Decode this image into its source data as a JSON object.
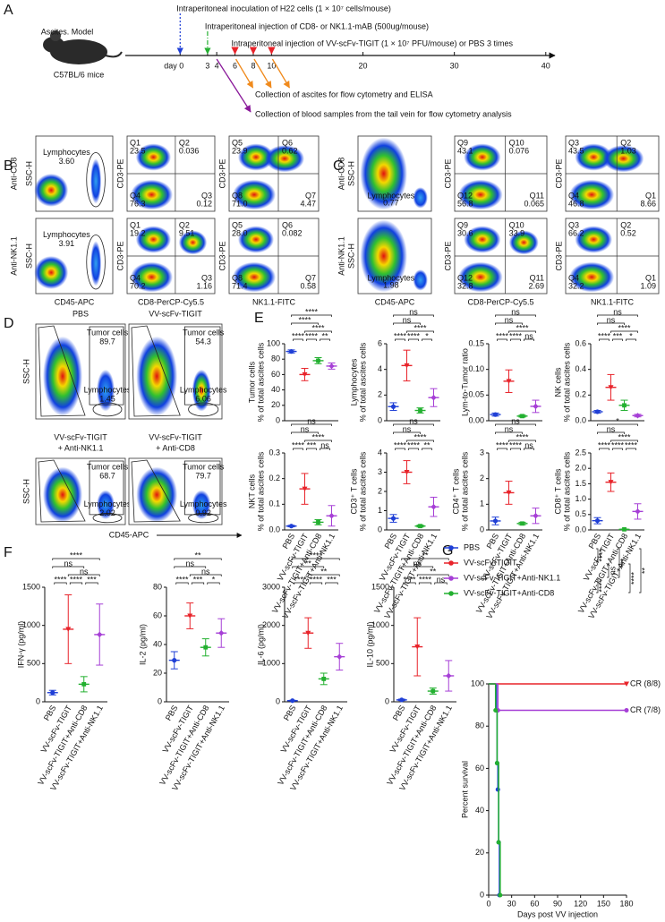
{
  "panels": [
    "A",
    "B",
    "C",
    "D",
    "E",
    "F",
    "G"
  ],
  "timeline": {
    "model": "Ascites. Model",
    "strain": "C57BL/6 mice",
    "steps": [
      "Intraperitoneal inoculation of H22 cells (1 × 10⁷ cells/mouse)",
      "Intraperitoneal injection of CD8- or NK1.1-mAB (500ug/mouse)",
      "Intraperitoneal injection of VV-scFv-TIGIT (1 × 10⁷ PFU/mouse) or PBS 3 times"
    ],
    "collections": [
      "Collection of ascites  for flow cytometry and ELISA",
      "Collection of blood samples from the tail vein for flow cytometry analysis"
    ],
    "xlim": [
      -6,
      41
    ],
    "ticks": [
      {
        "value": 0,
        "label": "day 0"
      },
      3,
      4,
      6,
      8,
      10,
      20,
      30,
      40
    ]
  },
  "flow_axes": {
    "ssc": "SSC-H",
    "cd45": "CD45-APC",
    "cd8": "CD8-PerCP-Cy5.5",
    "nk": "NK1.1-FITC",
    "cd3": "CD3-PE"
  },
  "flow_b": {
    "rows": [
      {
        "label": "Anti-CD8",
        "gate": "Lymphocytes",
        "gate_value": "3.60",
        "q2": [
          [
            "Q1",
            "23.5"
          ],
          [
            "Q2",
            "0.036"
          ],
          [
            "Q3",
            "0.12"
          ],
          [
            "Q4",
            "76.3"
          ]
        ],
        "q3": [
          [
            "Q5",
            "23.9"
          ],
          [
            "Q6",
            "0.62"
          ],
          [
            "Q7",
            "4.47"
          ],
          [
            "Q8",
            "71.0"
          ]
        ]
      },
      {
        "label": "Anti-NK1.1",
        "gate": "Lymphocytes",
        "gate_value": "3.91",
        "q2": [
          [
            "Q1",
            "19.2"
          ],
          [
            "Q2",
            "9.51"
          ],
          [
            "Q3",
            "1.16"
          ],
          [
            "Q4",
            "70.2"
          ]
        ],
        "q3": [
          [
            "Q5",
            "28.0"
          ],
          [
            "Q6",
            "0.082"
          ],
          [
            "Q7",
            "0.58"
          ],
          [
            "Q8",
            "71.4"
          ]
        ]
      }
    ]
  },
  "flow_c": {
    "rows": [
      {
        "label": "Anti-CD8",
        "gate": "Lymphocytes",
        "gate_value": "0.77",
        "q2": [
          [
            "Q9",
            "43.1"
          ],
          [
            "Q10",
            "0.076"
          ],
          [
            "Q11",
            "0.065"
          ],
          [
            "Q12",
            "56.8"
          ]
        ],
        "q3": [
          [
            "Q3",
            "43.5"
          ],
          [
            "Q2",
            "1.03"
          ],
          [
            "Q1",
            "8.66"
          ],
          [
            "Q4",
            "46.8"
          ]
        ]
      },
      {
        "label": "Anti-NK1.1",
        "gate": "Lymphocytes",
        "gate_value": "1.98",
        "q2": [
          [
            "Q9",
            "30.6"
          ],
          [
            "Q10",
            "33.9"
          ],
          [
            "Q11",
            "2.69"
          ],
          [
            "Q12",
            "32.8"
          ]
        ],
        "q3": [
          [
            "Q3",
            "66.2"
          ],
          [
            "Q2",
            "0.52"
          ],
          [
            "Q1",
            "1.09"
          ],
          [
            "Q4",
            "32.2"
          ]
        ]
      }
    ]
  },
  "gating": {
    "tumor": "Tumor cells",
    "lymph": "Lymphocytes",
    "plots": [
      {
        "title": [
          "PBS"
        ],
        "tumor_value": "89.7",
        "lymph_value": "1.45"
      },
      {
        "title": [
          "VV-scFv-TIGIT"
        ],
        "tumor_value": "54.3",
        "lymph_value": "6.06"
      },
      {
        "title": [
          "VV-scFv-TIGIT",
          "+ Anti-NK1.1"
        ],
        "tumor_value": "68.7",
        "lymph_value": "2.02"
      },
      {
        "title": [
          "VV-scFv-TIGIT",
          "+ Anti-CD8"
        ],
        "tumor_value": "79.7",
        "lymph_value": "0.92"
      }
    ]
  },
  "groups": [
    "PBS",
    "VV-scFv-TIGIT",
    "VV-scFv-TIGIT+Anti-CD8",
    "VV-scFv-TIGIT+Anti-NK1.1"
  ],
  "group_colors": [
    "#1f3fd6",
    "#e8232a",
    "#23b030",
    "#a63fd6"
  ],
  "ascites": [
    {
      "ylabel": [
        "Tumor cells",
        "% of total ascites cells"
      ],
      "ylim": [
        0,
        100
      ],
      "yticks": [
        0,
        20,
        40,
        60,
        80,
        100
      ],
      "means": [
        90,
        60,
        78,
        71
      ],
      "sd": [
        2,
        8,
        4,
        4
      ],
      "sig": [
        "****",
        "****",
        "****",
        "****",
        "****",
        "**"
      ]
    },
    {
      "ylabel": [
        "Lymphocytes",
        "% of total ascites cells"
      ],
      "ylim": [
        0,
        6
      ],
      "yticks": [
        0,
        2,
        4,
        6
      ],
      "means": [
        1.1,
        4.3,
        0.8,
        1.8
      ],
      "sd": [
        0.3,
        1.2,
        0.2,
        0.7
      ],
      "sig": [
        "ns",
        "ns",
        "****",
        "****",
        "****",
        "*"
      ]
    },
    {
      "ylabel": [
        "Lym-to-Tumor ratio"
      ],
      "ylim": [
        0,
        0.15
      ],
      "yticks": [
        {
          "value": 0,
          "label": "0.00"
        },
        0.05,
        {
          "value": 0.1,
          "label": "0.10"
        },
        0.15
      ],
      "means": [
        0.012,
        0.077,
        0.009,
        0.028
      ],
      "sd": [
        0.003,
        0.022,
        0.002,
        0.012
      ],
      "sig": [
        "ns",
        "ns",
        "****",
        "****",
        "****",
        "ns"
      ]
    },
    {
      "ylabel": [
        "NK cells",
        "% of total ascites cells"
      ],
      "ylim": [
        0,
        0.6
      ],
      "yticks": [
        {
          "value": 0,
          "label": "0.0"
        },
        0.2,
        0.4,
        0.6
      ],
      "means": [
        0.07,
        0.26,
        0.12,
        0.04
      ],
      "sd": [
        0.01,
        0.1,
        0.04,
        0.01
      ],
      "sig": [
        "ns",
        "ns",
        "****",
        "****",
        "***",
        "*"
      ]
    },
    {
      "ylabel": [
        "NKT cells",
        "% of total ascites cells"
      ],
      "ylim": [
        0,
        0.3
      ],
      "yticks": [
        {
          "value": 0,
          "label": "0.0"
        },
        0.1,
        0.2,
        0.3
      ],
      "means": [
        0.015,
        0.16,
        0.03,
        0.055
      ],
      "sd": [
        0.003,
        0.06,
        0.01,
        0.04
      ],
      "sig": [
        "ns",
        "ns",
        "****",
        "****",
        "***",
        "ns"
      ]
    },
    {
      "ylabel": [
        "CD3⁺ T cells",
        "% of total ascites cells"
      ],
      "ylim": [
        0,
        4
      ],
      "yticks": [
        0,
        1,
        2,
        3,
        4
      ],
      "means": [
        0.6,
        3,
        0.2,
        1.2
      ],
      "sd": [
        0.2,
        0.6,
        0.05,
        0.5
      ],
      "sig": [
        "ns",
        "ns",
        "****",
        "****",
        "****",
        "**"
      ]
    },
    {
      "ylabel": [
        "CD4⁺ T cells",
        "% of total ascites cells"
      ],
      "ylim": [
        0,
        3
      ],
      "yticks": [
        0,
        1,
        2,
        3
      ],
      "means": [
        0.35,
        1.45,
        0.25,
        0.55
      ],
      "sd": [
        0.15,
        0.45,
        0.05,
        0.3
      ],
      "sig": [
        "ns",
        "ns",
        "****",
        "****",
        "****",
        "ns"
      ]
    },
    {
      "ylabel": [
        "CD8⁺ T cells",
        "% of total ascites cells"
      ],
      "ylim": [
        0,
        2.5
      ],
      "yticks": [
        {
          "value": 0,
          "label": "0.0"
        },
        0.5,
        {
          "value": 1,
          "label": "1.0"
        },
        1.5,
        {
          "value": 2,
          "label": "2.0"
        },
        2.5
      ],
      "means": [
        0.3,
        1.55,
        0.02,
        0.6
      ],
      "sd": [
        0.1,
        0.3,
        0.01,
        0.25
      ],
      "sig": [
        "*",
        "ns",
        "****",
        "****",
        "****",
        "****"
      ]
    }
  ],
  "cytokines": [
    {
      "ylabel": [
        "IFN-γ (pg/ml)"
      ],
      "ylim": [
        0,
        1500
      ],
      "yticks": [
        0,
        500,
        1000,
        1500
      ],
      "means": [
        120,
        950,
        230,
        880
      ],
      "sd": [
        30,
        450,
        100,
        400
      ],
      "sig": [
        "****",
        "ns",
        "ns",
        "****",
        "****",
        "***"
      ]
    },
    {
      "ylabel": [
        "IL-2 (pg/ml)"
      ],
      "ylim": [
        0,
        80
      ],
      "yticks": [
        0,
        20,
        40,
        60,
        80
      ],
      "means": [
        29,
        60,
        38,
        48
      ],
      "sd": [
        6,
        9,
        6,
        10
      ],
      "sig": [
        "**",
        "ns",
        "ns",
        "****",
        "***",
        "*"
      ]
    },
    {
      "ylabel": [
        "IL-6 (pg/ml)"
      ],
      "ylim": [
        0,
        3000
      ],
      "yticks": [
        0,
        1000,
        2000,
        3000
      ],
      "means": [
        30,
        1800,
        600,
        1180
      ],
      "sd": [
        10,
        400,
        150,
        350
      ],
      "sig": [
        "****",
        "**",
        "**",
        "****",
        "****",
        "***"
      ]
    },
    {
      "ylabel": [
        "IL-10 (pg/ml)"
      ],
      "ylim": [
        0,
        1500
      ],
      "yticks": [
        0,
        500,
        1000,
        1500
      ],
      "means": [
        25,
        720,
        140,
        340
      ],
      "sd": [
        10,
        380,
        40,
        200
      ],
      "sig": [
        "**",
        "ns",
        "**",
        "****",
        "****",
        "ns"
      ]
    }
  ],
  "survival": {
    "type": "line",
    "ylabel": "Percent survival",
    "xlabel": "Days post VV injection",
    "xlim": [
      0,
      180
    ],
    "xticks": [
      0,
      30,
      60,
      90,
      120,
      150,
      180
    ],
    "ylim": [
      0,
      100
    ],
    "yticks": [
      0,
      20,
      40,
      60,
      80,
      100
    ],
    "series": [
      {
        "name": "PBS",
        "color": "#1f3fd6",
        "x": [
          0,
          10,
          11,
          12,
          13,
          14
        ],
        "values": [
          100,
          87.5,
          62.5,
          50,
          25,
          0
        ]
      },
      {
        "name": "VV-scFv-TIGIT",
        "color": "#e8232a",
        "x": [
          0,
          180
        ],
        "values": [
          100,
          100
        ]
      },
      {
        "name": "VV-scFv-TIGIT+Anti-NK1.1",
        "color": "#a63fd6",
        "x": [
          0,
          12,
          180
        ],
        "values": [
          100,
          87.5,
          87.5
        ]
      },
      {
        "name": "VV-scFv-TIGIT+Anti-CD8",
        "color": "#23b030",
        "x": [
          0,
          9,
          11,
          13,
          15
        ],
        "values": [
          100,
          87.5,
          62.5,
          25,
          0
        ]
      }
    ],
    "annotations": [
      "CR (8/8)",
      "CR (7/8)"
    ],
    "sig": [
      "****",
      "****",
      "ns",
      "***",
      "****",
      "**"
    ]
  }
}
